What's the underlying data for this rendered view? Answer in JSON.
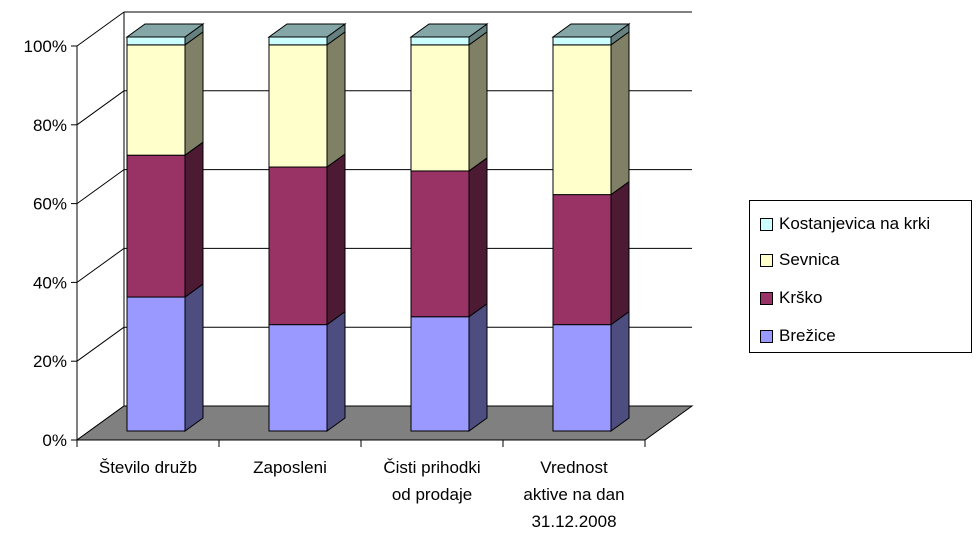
{
  "chart_data": {
    "type": "bar",
    "stacked": "100%",
    "three_d": true,
    "categories": [
      [
        "Število družb"
      ],
      [
        "Zaposleni"
      ],
      [
        "Čisti prihodki",
        "od prodaje"
      ],
      [
        "Vrednost",
        "aktive na dan",
        "31.12.2008"
      ]
    ],
    "series": [
      {
        "name": "Brežice",
        "color": "#9999ff",
        "values": [
          34,
          27,
          29,
          27
        ]
      },
      {
        "name": "Krško",
        "color": "#993366",
        "values": [
          36,
          40,
          37,
          33
        ]
      },
      {
        "name": "Sevnica",
        "color": "#ffffcc",
        "values": [
          28,
          31,
          32,
          38
        ]
      },
      {
        "name": "Kostanjevica na krki",
        "color": "#ccffff",
        "values": [
          2,
          2,
          2,
          2
        ]
      }
    ],
    "y_ticks": [
      "0%",
      "20%",
      "40%",
      "60%",
      "80%",
      "100%"
    ],
    "ylim": [
      0,
      100
    ],
    "gridlines": true,
    "floor_color": "#808080",
    "legend_position": "right",
    "legend_order": [
      "Kostanjevica na krki",
      "Sevnica",
      "Krško",
      "Brežice"
    ]
  }
}
